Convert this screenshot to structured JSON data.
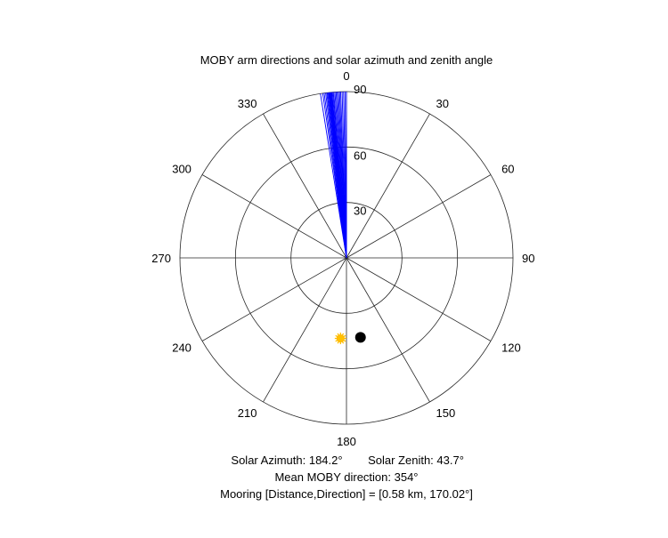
{
  "chart_data": {
    "type": "polar",
    "title": "MOBY arm directions and solar azimuth and zenith angle",
    "angular_ticks": [
      "0",
      "30",
      "60",
      "90",
      "120",
      "150",
      "180",
      "210",
      "240",
      "270",
      "300",
      "330"
    ],
    "radial_ticks": [
      "30",
      "60",
      "90"
    ],
    "radial_max": 90,
    "direction_clockwise": true,
    "zero_at": "top",
    "grid": true,
    "series": [
      {
        "kind": "radial-lines",
        "color": "#0000ff",
        "theta_deg": [
          351.0,
          351.8,
          352.3,
          352.8,
          353.2,
          353.5,
          353.8,
          354.0,
          354.2,
          354.4,
          354.6,
          354.8,
          355.0,
          355.3,
          355.6,
          356.0,
          356.4,
          356.8,
          357.2,
          357.6,
          358.0,
          358.5,
          359.0,
          359.5,
          0.0
        ],
        "r": 90
      },
      {
        "kind": "marker",
        "name": "Solar",
        "icon": "sun-icon",
        "color": "#ffc000",
        "theta_deg": 184.2,
        "r": 43.7
      },
      {
        "kind": "marker",
        "name": "Mooring",
        "color": "#000000",
        "theta_deg": 170.02,
        "r": 43.7
      }
    ],
    "annotations": {
      "line1_a": "Solar Azimuth: 184.2°",
      "line1_b": "Solar Zenith: 43.7°",
      "line2": "Mean MOBY direction: 354°",
      "line3": "Mooring [Distance,Direction] = [0.58 km, 170.02°]"
    }
  }
}
